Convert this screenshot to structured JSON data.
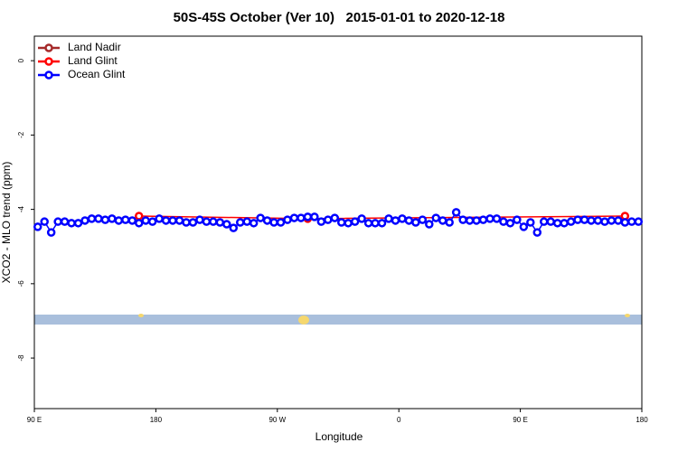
{
  "chart_data": {
    "type": "line",
    "title": "50S-45S October (Ver 10)   2015-01-01 to 2020-12-18",
    "x_label": "Longitude",
    "y_label": "XCO2 - MLO trend (ppm)",
    "xlim": [
      90,
      540
    ],
    "ylim": [
      -9.36,
      0.66
    ],
    "xticks": [
      {
        "value": 90,
        "label": "90 E"
      },
      {
        "value": 180,
        "label": "180"
      },
      {
        "value": 270,
        "label": "90 W"
      },
      {
        "value": 360,
        "label": "0"
      },
      {
        "value": 450,
        "label": "90 E"
      },
      {
        "value": 540,
        "label": "180"
      }
    ],
    "yticks": [
      0,
      -2,
      -4,
      -6,
      -8
    ],
    "legend": "top-left",
    "series": [
      {
        "name": "Land Nadir",
        "color": "#a52a2a",
        "x": [],
        "values": []
      },
      {
        "name": "Land Glint",
        "color": "#ff0000",
        "x": [
          167.5,
          292.5,
          527.5
        ],
        "values": [
          -4.18,
          -4.25,
          -4.18
        ]
      },
      {
        "name": "Ocean Glint",
        "color": "#0000ff",
        "x": [
          92.5,
          97.5,
          102.5,
          107.5,
          112.5,
          117.5,
          122.5,
          127.5,
          132.5,
          137.5,
          142.5,
          147.5,
          152.5,
          157.5,
          162.5,
          167.5,
          172.5,
          177.5,
          182.5,
          187.5,
          192.5,
          197.5,
          202.5,
          207.5,
          212.5,
          217.5,
          222.5,
          227.5,
          232.5,
          237.5,
          242.5,
          247.5,
          252.5,
          257.5,
          262.5,
          267.5,
          272.5,
          277.5,
          282.5,
          287.5,
          292.5,
          297.5,
          302.5,
          307.5,
          312.5,
          317.5,
          322.5,
          327.5,
          332.5,
          337.5,
          342.5,
          347.5,
          352.5,
          357.5,
          362.5,
          367.5,
          372.5,
          377.5,
          382.5,
          387.5,
          392.5,
          397.5,
          402.5,
          407.5,
          412.5,
          417.5,
          422.5,
          427.5,
          432.5,
          437.5,
          442.5,
          447.5,
          452.5,
          457.5,
          462.5,
          467.5,
          472.5,
          477.5,
          482.5,
          487.5,
          492.5,
          497.5,
          502.5,
          507.5,
          512.5,
          517.5,
          522.5,
          527.5,
          532.5,
          537.5
        ],
        "values": [
          -4.47,
          -4.33,
          -4.62,
          -4.33,
          -4.33,
          -4.37,
          -4.37,
          -4.3,
          -4.25,
          -4.25,
          -4.28,
          -4.25,
          -4.3,
          -4.28,
          -4.3,
          -4.37,
          -4.3,
          -4.33,
          -4.25,
          -4.3,
          -4.3,
          -4.3,
          -4.35,
          -4.35,
          -4.28,
          -4.33,
          -4.33,
          -4.35,
          -4.4,
          -4.5,
          -4.35,
          -4.33,
          -4.37,
          -4.23,
          -4.3,
          -4.35,
          -4.35,
          -4.28,
          -4.23,
          -4.23,
          -4.2,
          -4.2,
          -4.33,
          -4.28,
          -4.23,
          -4.35,
          -4.37,
          -4.33,
          -4.25,
          -4.37,
          -4.37,
          -4.37,
          -4.25,
          -4.3,
          -4.25,
          -4.3,
          -4.35,
          -4.28,
          -4.4,
          -4.23,
          -4.3,
          -4.35,
          -4.08,
          -4.28,
          -4.3,
          -4.3,
          -4.28,
          -4.25,
          -4.25,
          -4.33,
          -4.37,
          -4.28,
          -4.47,
          -4.35,
          -4.62,
          -4.33,
          -4.33,
          -4.37,
          -4.37,
          -4.33,
          -4.28,
          -4.28,
          -4.3,
          -4.3,
          -4.33,
          -4.3,
          -4.3,
          -4.35,
          -4.33,
          -4.33
        ]
      }
    ]
  }
}
